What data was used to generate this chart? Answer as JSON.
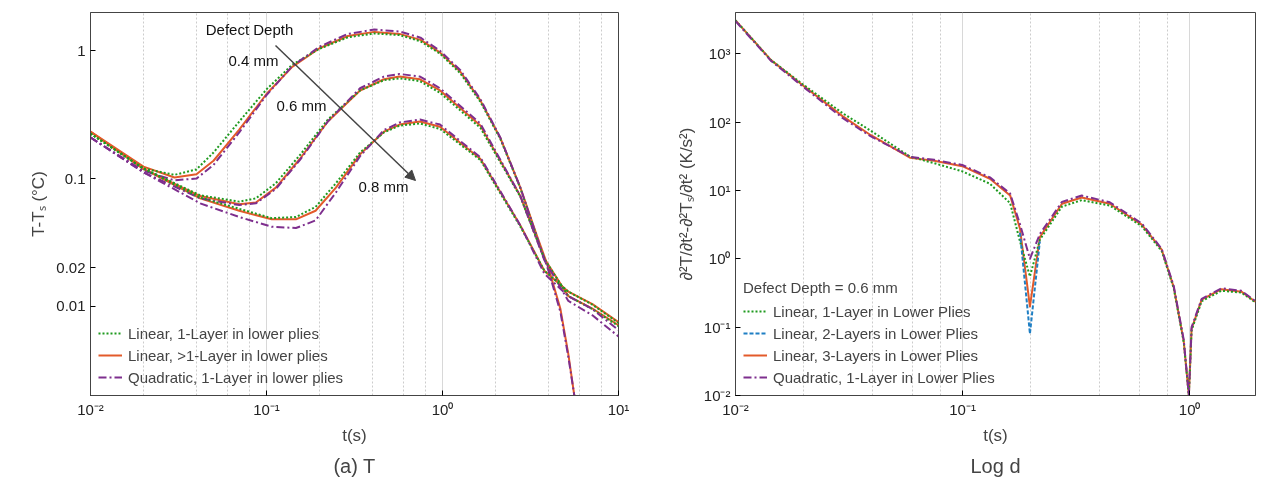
{
  "chart_data": [
    {
      "type": "line",
      "xlabel": "t(s)",
      "ylabel": "T-Tₛ (°C)",
      "log": "xy",
      "grid": "x",
      "legend": "bottom left",
      "xlim": [
        0.01,
        10
      ],
      "ylim": [
        0.002,
        2
      ],
      "xticks": [
        {
          "value": 0.01,
          "label": "10⁻²"
        },
        {
          "value": 0.1,
          "label": "10⁻¹"
        },
        {
          "value": 1,
          "label": "10⁰"
        },
        {
          "value": 10,
          "label": "10¹"
        }
      ],
      "yticks": [
        0.01,
        0.02,
        0.1,
        1
      ],
      "annotations": [
        "Defect Depth",
        "0.4 mm",
        "0.6 mm",
        "0.8 mm",
        "(a) T"
      ],
      "series": [
        {
          "name": "Linear, 1-Layer in lower plies",
          "color": "#1f9a1f",
          "line_style": "dotted",
          "x": [
            0.01,
            0.02,
            0.03,
            0.04,
            0.05,
            0.07,
            0.1,
            0.14,
            0.2,
            0.29,
            0.41,
            0.57,
            0.75,
            0.97,
            1.26,
            1.64,
            2.13,
            2.77,
            3.41
          ],
          "values": [
            0.225,
            0.12,
            0.107,
            0.118,
            0.16,
            0.28,
            0.5,
            0.78,
            1.04,
            1.28,
            1.37,
            1.33,
            1.19,
            0.95,
            0.67,
            0.4,
            0.205,
            0.084,
            0.036
          ]
        },
        {
          "name": "Linear, >1-Layer in lower plies",
          "color": "#e35a2a",
          "line_style": "solid",
          "x": [
            0.01,
            0.02,
            0.03,
            0.04,
            0.05,
            0.07,
            0.1,
            0.14,
            0.2,
            0.29,
            0.41,
            0.57,
            0.75,
            0.97,
            1.26,
            1.64,
            2.13,
            2.77,
            3.41,
            4,
            4.68,
            5.19,
            5.61
          ],
          "values": [
            0.233,
            0.124,
            0.102,
            0.108,
            0.138,
            0.242,
            0.46,
            0.75,
            1.05,
            1.31,
            1.41,
            1.36,
            1.22,
            0.97,
            0.69,
            0.41,
            0.208,
            0.085,
            0.037,
            0.02,
            0.0095,
            0.0042,
            0.002
          ]
        },
        {
          "name": "Quadratic, 1-Layer in lower plies",
          "color": "#7e2f8e",
          "line_style": "dashdot",
          "x": [
            0.01,
            0.02,
            0.03,
            0.04,
            0.05,
            0.07,
            0.1,
            0.14,
            0.2,
            0.29,
            0.41,
            0.57,
            0.75,
            0.97,
            1.26,
            1.64,
            2.13,
            2.77,
            3.41,
            4,
            4.68,
            5.19,
            5.61
          ],
          "values": [
            0.21,
            0.115,
            0.097,
            0.1,
            0.128,
            0.23,
            0.45,
            0.76,
            1.08,
            1.36,
            1.47,
            1.42,
            1.27,
            1.0,
            0.71,
            0.42,
            0.21,
            0.085,
            0.036,
            0.019,
            0.009,
            0.004,
            0.002
          ]
        },
        {
          "color": "#1f9a1f",
          "line_style": "dotted",
          "x": [
            0.01,
            0.02,
            0.042,
            0.07,
            0.087,
            0.113,
            0.155,
            0.223,
            0.34,
            0.465,
            0.57,
            0.745,
            0.968,
            1.64,
            2.77,
            3.79,
            5.19,
            7.11,
            10
          ],
          "values": [
            0.225,
            0.12,
            0.074,
            0.066,
            0.07,
            0.092,
            0.153,
            0.29,
            0.49,
            0.59,
            0.61,
            0.58,
            0.47,
            0.25,
            0.072,
            0.0235,
            0.012,
            0.0095,
            0.007
          ]
        },
        {
          "color": "#e35a2a",
          "line_style": "solid",
          "x": [
            0.01,
            0.02,
            0.042,
            0.07,
            0.087,
            0.113,
            0.155,
            0.223,
            0.34,
            0.465,
            0.57,
            0.745,
            0.968,
            1.64,
            2.77,
            3.79,
            5.19,
            7.11,
            10
          ],
          "values": [
            0.233,
            0.119,
            0.073,
            0.063,
            0.065,
            0.085,
            0.143,
            0.28,
            0.49,
            0.6,
            0.63,
            0.6,
            0.49,
            0.26,
            0.073,
            0.0237,
            0.012,
            0.0096,
            0.0071
          ]
        },
        {
          "color": "#7e2f8e",
          "line_style": "dashdot",
          "x": [
            0.01,
            0.02,
            0.042,
            0.07,
            0.087,
            0.113,
            0.155,
            0.223,
            0.34,
            0.465,
            0.57,
            0.745,
            0.968,
            1.64,
            2.77,
            3.79,
            5.19,
            7.11,
            10
          ],
          "values": [
            0.21,
            0.112,
            0.07,
            0.062,
            0.064,
            0.083,
            0.14,
            0.28,
            0.51,
            0.63,
            0.66,
            0.63,
            0.51,
            0.27,
            0.073,
            0.023,
            0.011,
            0.0085,
            0.0058
          ]
        },
        {
          "color": "#1f9a1f",
          "line_style": "dotted",
          "x": [
            0.01,
            0.02,
            0.042,
            0.07,
            0.107,
            0.147,
            0.19,
            0.248,
            0.34,
            0.465,
            0.57,
            0.745,
            0.968,
            1.64,
            2.77,
            3.79,
            5.19,
            7.11,
            10
          ],
          "values": [
            0.225,
            0.12,
            0.071,
            0.058,
            0.049,
            0.05,
            0.06,
            0.092,
            0.16,
            0.23,
            0.26,
            0.27,
            0.245,
            0.14,
            0.042,
            0.019,
            0.013,
            0.0103,
            0.0074
          ]
        },
        {
          "color": "#e35a2a",
          "line_style": "solid",
          "x": [
            0.01,
            0.02,
            0.042,
            0.07,
            0.107,
            0.147,
            0.19,
            0.248,
            0.34,
            0.465,
            0.57,
            0.745,
            0.968,
            1.64,
            2.77,
            3.79,
            5.19,
            7.11,
            10
          ],
          "values": [
            0.233,
            0.119,
            0.07,
            0.056,
            0.048,
            0.048,
            0.056,
            0.085,
            0.155,
            0.233,
            0.265,
            0.28,
            0.255,
            0.143,
            0.043,
            0.019,
            0.013,
            0.0104,
            0.0075
          ]
        },
        {
          "color": "#7e2f8e",
          "line_style": "dashdot",
          "x": [
            0.01,
            0.02,
            0.042,
            0.07,
            0.107,
            0.147,
            0.19,
            0.248,
            0.34,
            0.465,
            0.57,
            0.745,
            0.968,
            1.64,
            2.77,
            3.79,
            5.19,
            7.11,
            10
          ],
          "values": [
            0.21,
            0.112,
            0.064,
            0.05,
            0.042,
            0.041,
            0.047,
            0.078,
            0.15,
            0.24,
            0.275,
            0.29,
            0.265,
            0.147,
            0.043,
            0.018,
            0.012,
            0.0095,
            0.0065
          ]
        }
      ]
    },
    {
      "type": "line",
      "xlabel": "t(s)",
      "ylabel": "∂²T/∂t²-∂²Tₛ/∂t² (K/s²)",
      "log": "xy",
      "grid": "x",
      "legend": "bottom left",
      "legend_title": "Defect Depth = 0.6 mm",
      "xlim": [
        0.01,
        1.95
      ],
      "ylim": [
        0.01,
        4000
      ],
      "xticks": [
        {
          "value": 0.01,
          "label": "10⁻²"
        },
        {
          "value": 0.1,
          "label": "10⁻¹"
        },
        {
          "value": 1,
          "label": "10⁰"
        }
      ],
      "yticks": [
        {
          "value": 0.01,
          "label": "10⁻²"
        },
        {
          "value": 0.1,
          "label": "10⁻¹"
        },
        {
          "value": 1,
          "label": "10⁰"
        },
        {
          "value": 10,
          "label": "10¹"
        },
        {
          "value": 100,
          "label": "10²"
        },
        {
          "value": 1000,
          "label": "10³"
        }
      ],
      "annotations": [
        "Log d"
      ],
      "x": [
        0.01,
        0.0143,
        0.0197,
        0.0296,
        0.0393,
        0.0589,
        0.075,
        0.0997,
        0.132,
        0.162,
        0.179,
        0.198,
        0.219,
        0.274,
        0.335,
        0.445,
        0.615,
        0.753,
        0.851,
        0.942,
        0.992,
        1.02,
        1.13,
        1.38,
        1.69,
        1.95
      ],
      "series": [
        {
          "name": "Linear, 1-Layer in Lower Plies",
          "color": "#1f9a1f",
          "line_style": "dotted",
          "values": [
            3075,
            811,
            360,
            135,
            75,
            31,
            25,
            19,
            12.5,
            6.5,
            1.8,
            0.55,
            1.9,
            5.8,
            7.2,
            6.0,
            3.0,
            1.3,
            0.37,
            0.06,
            0.01,
            0.09,
            0.24,
            0.34,
            0.32,
            0.23
          ]
        },
        {
          "name": "Linear, 2-Layers in Lower Plies",
          "color": "#1f7fc4",
          "line_style": "dashed",
          "values": [
            null,
            null,
            null,
            null,
            null,
            null,
            null,
            null,
            null,
            null,
            2.4,
            0.08,
            1.8,
            null,
            null,
            null,
            null,
            null,
            null,
            null,
            null,
            null,
            null,
            null,
            null,
            null
          ]
        },
        {
          "name": "Linear, 3-Layers in Lower Plies",
          "color": "#e35a2a",
          "line_style": "solid",
          "values": [
            3075,
            811,
            349,
            122,
            64.7,
            29.9,
            27.1,
            22.6,
            14.8,
            8.45,
            2.75,
            0.2,
            2.07,
            6.38,
            7.87,
            6.38,
            3.16,
            1.36,
            0.385,
            0.062,
            0.01,
            0.0946,
            0.252,
            0.359,
            0.33,
            0.235
          ]
        },
        {
          "name": "Quadratic, 1-Layer in Lower Plies",
          "color": "#7e2f8e",
          "line_style": "dashdot",
          "values": [
            3000,
            790,
            335,
            115,
            62,
            31,
            28,
            23.5,
            15.5,
            9,
            3.2,
            1.0,
            2.3,
            6.8,
            8.4,
            6.7,
            3.3,
            1.4,
            0.4,
            0.065,
            0.01,
            0.1,
            0.26,
            0.37,
            0.34,
            0.24
          ]
        }
      ]
    }
  ]
}
